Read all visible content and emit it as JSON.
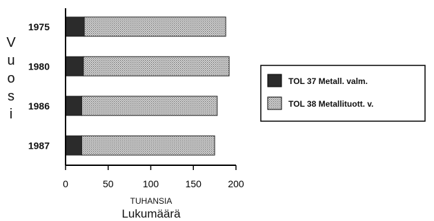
{
  "chart_data": {
    "type": "bar",
    "orientation": "horizontal",
    "stacked": true,
    "categories": [
      "1975",
      "1980",
      "1986",
      "1987"
    ],
    "series": [
      {
        "name": "TOL 37 Metall. valm.",
        "values": [
          22,
          21,
          19,
          19
        ],
        "color": "#2b2b2b"
      },
      {
        "name": "TOL 38 Metallituott. v.",
        "values": [
          166,
          171,
          159,
          156
        ],
        "color": "#d8d8d8"
      }
    ],
    "title": "",
    "ylabel": "Vuosi",
    "xlabel_units": "TUHANSIA",
    "xlabel": "Lukumäärä",
    "xlim": [
      0,
      200
    ],
    "xticks": [
      "0",
      "50",
      "100",
      "150",
      "200"
    ],
    "grid": false,
    "legend_position": "right"
  }
}
